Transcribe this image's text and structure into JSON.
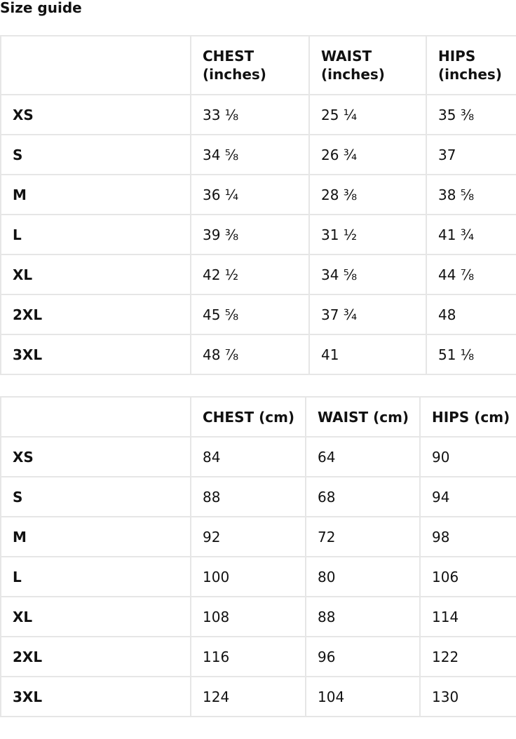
{
  "title": "Size guide",
  "inches_table": {
    "headers": [
      "",
      "CHEST (inches)",
      "WAIST (inches)",
      "HIPS (inches)"
    ],
    "rows": [
      [
        "XS",
        "33 ⅛",
        "25 ¼",
        "35 ⅜"
      ],
      [
        "S",
        "34 ⅝",
        "26 ¾",
        "37"
      ],
      [
        "M",
        "36 ¼",
        "28 ⅜",
        "38 ⅝"
      ],
      [
        "L",
        "39 ⅜",
        "31 ½",
        "41 ¾"
      ],
      [
        "XL",
        "42 ½",
        "34 ⅝",
        "44 ⅞"
      ],
      [
        "2XL",
        "45 ⅝",
        "37 ¾",
        "48"
      ],
      [
        "3XL",
        "48 ⅞",
        "41",
        "51 ⅛"
      ]
    ]
  },
  "cm_table": {
    "headers": [
      "",
      "CHEST (cm)",
      "WAIST (cm)",
      "HIPS (cm)"
    ],
    "rows": [
      [
        "XS",
        "84",
        "64",
        "90"
      ],
      [
        "S",
        "88",
        "68",
        "94"
      ],
      [
        "M",
        "92",
        "72",
        "98"
      ],
      [
        "L",
        "100",
        "80",
        "106"
      ],
      [
        "XL",
        "108",
        "88",
        "114"
      ],
      [
        "2XL",
        "116",
        "96",
        "122"
      ],
      [
        "3XL",
        "124",
        "104",
        "130"
      ]
    ]
  }
}
